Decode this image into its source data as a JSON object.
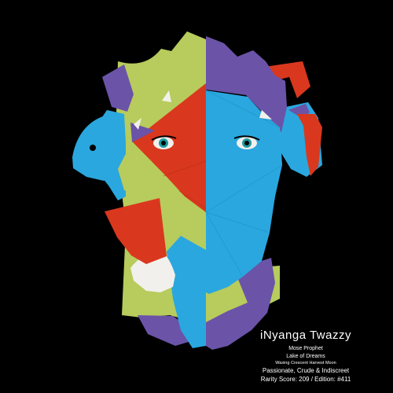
{
  "artwork": {
    "background_color": "#000000",
    "palette": {
      "lime": "#b7cc5c",
      "blue": "#2aa7df",
      "purple": "#6b53a8",
      "red": "#d9381e",
      "white": "#f2f0ec",
      "eye_iris": "#1e9aa0",
      "black": "#000000"
    }
  },
  "caption": {
    "title": "iNyanga Twazzy",
    "line1": "Mose Prophet",
    "line2": "Lake of Dreams",
    "line3": "Waxing Crescent Harvest Moon",
    "line4": "Passionate, Crude & Indiscreet",
    "line5": "Rarity Score: 209 / Edition: #411"
  }
}
